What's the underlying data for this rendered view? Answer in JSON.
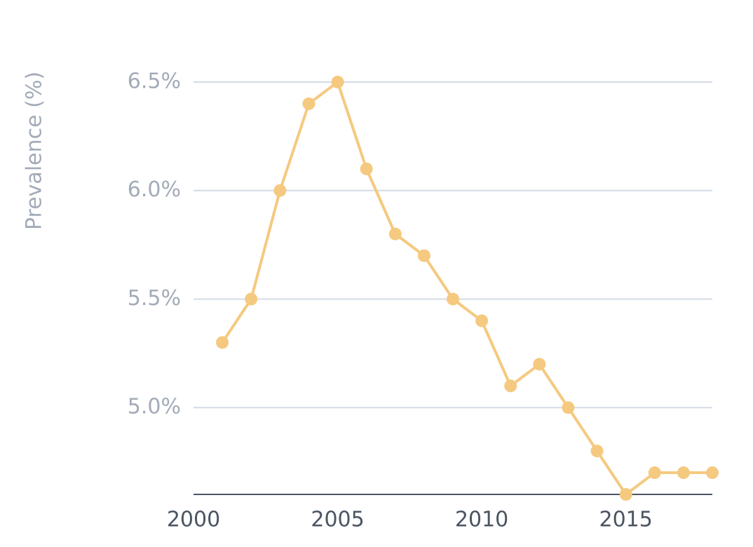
{
  "chart_data": {
    "type": "line",
    "y_axis_label": "Prevalence (%)",
    "x": [
      2001,
      2002,
      2003,
      2004,
      2005,
      2006,
      2007,
      2008,
      2009,
      2010,
      2011,
      2012,
      2013,
      2014,
      2015,
      2016,
      2017,
      2018
    ],
    "values": [
      5.3,
      5.5,
      6.0,
      6.4,
      6.5,
      6.1,
      5.8,
      5.7,
      5.5,
      5.4,
      5.1,
      5.2,
      5.0,
      4.8,
      4.6,
      4.7,
      4.7,
      4.7
    ],
    "color": "#f5c97f",
    "xlim": [
      2000,
      2018
    ],
    "xticks": [
      2000,
      2005,
      2010,
      2015
    ],
    "ylim": [
      4.6,
      6.5
    ],
    "yticks": [
      {
        "value": 5.0,
        "label": "5.0%"
      },
      {
        "value": 5.5,
        "label": "5.5%"
      },
      {
        "value": 6.0,
        "label": "6.0%"
      },
      {
        "value": 6.5,
        "label": "6.5%"
      }
    ],
    "grid": true
  }
}
